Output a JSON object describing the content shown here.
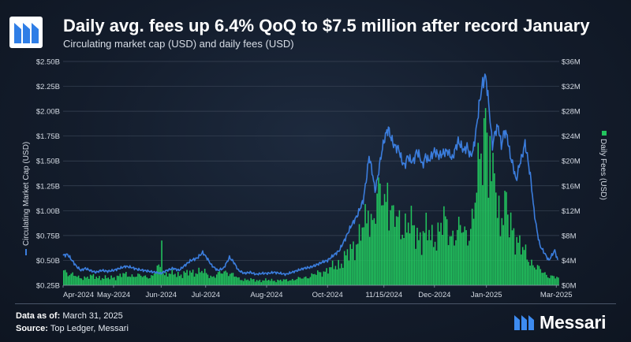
{
  "header": {
    "title": "Daily avg. fees up 6.4% QoQ to $7.5 million after record January",
    "subtitle": "Circulating market cap (USD) and daily fees (USD)"
  },
  "footer": {
    "data_as_of_label": "Data as of:",
    "data_as_of_value": "March 31, 2025",
    "source_label": "Source:",
    "source_value": "Top Ledger, Messari",
    "brand_name": "Messari"
  },
  "colors": {
    "line": "#3b7ddd",
    "bars": "#22c55e",
    "grid": "#3a4556",
    "brand": "#3d8bf0"
  },
  "chart_data": {
    "type": "bar+line",
    "title": "Daily avg. fees up 6.4% QoQ to $7.5 million after record January",
    "subtitle": "Circulating market cap (USD) and daily fees (USD)",
    "x_tick_labels": [
      "Apr-2024",
      "May-2024",
      "Jun-2024",
      "Jul-2024",
      "Aug-2024",
      "Oct-2024",
      "11/15/2024",
      "Dec-2024",
      "Jan-2025",
      "Mar-2025"
    ],
    "x_tick_days": [
      0,
      34,
      66,
      96,
      137,
      178,
      216,
      250,
      285,
      332
    ],
    "total_days": 334,
    "left_axis": {
      "label": "Circulating Market Cap (USD)",
      "range": [
        0.25,
        2.5
      ],
      "ticks": [
        "$0.25B",
        "$0.50B",
        "$0.75B",
        "$1.00B",
        "$1.25B",
        "$1.50B",
        "$1.75B",
        "$2.00B",
        "$2.25B",
        "$2.50B"
      ]
    },
    "right_axis": {
      "label": "Daily Fees (USD)",
      "range": [
        0,
        36
      ],
      "ticks": [
        "$0M",
        "$4M",
        "$8M",
        "$12M",
        "$16M",
        "$20M",
        "$24M",
        "$28M",
        "$32M",
        "$36M"
      ]
    },
    "legend": "axis-title swatches (left: line, right: bars)",
    "grid": true,
    "series": [
      {
        "name": "Circulating Market Cap (USD)",
        "type": "line",
        "axis": "left",
        "unit": "USD billions",
        "points": [
          [
            0,
            0.55
          ],
          [
            3,
            0.56
          ],
          [
            6,
            0.5
          ],
          [
            9,
            0.44
          ],
          [
            12,
            0.4
          ],
          [
            15,
            0.42
          ],
          [
            18,
            0.4
          ],
          [
            22,
            0.38
          ],
          [
            26,
            0.4
          ],
          [
            30,
            0.39
          ],
          [
            34,
            0.4
          ],
          [
            38,
            0.42
          ],
          [
            42,
            0.44
          ],
          [
            46,
            0.43
          ],
          [
            50,
            0.41
          ],
          [
            54,
            0.4
          ],
          [
            58,
            0.39
          ],
          [
            62,
            0.38
          ],
          [
            66,
            0.37
          ],
          [
            70,
            0.4
          ],
          [
            74,
            0.42
          ],
          [
            78,
            0.4
          ],
          [
            82,
            0.45
          ],
          [
            86,
            0.5
          ],
          [
            90,
            0.52
          ],
          [
            94,
            0.58
          ],
          [
            97,
            0.52
          ],
          [
            100,
            0.45
          ],
          [
            104,
            0.4
          ],
          [
            108,
            0.42
          ],
          [
            112,
            0.53
          ],
          [
            115,
            0.48
          ],
          [
            118,
            0.4
          ],
          [
            122,
            0.37
          ],
          [
            126,
            0.38
          ],
          [
            130,
            0.36
          ],
          [
            134,
            0.37
          ],
          [
            138,
            0.37
          ],
          [
            142,
            0.38
          ],
          [
            146,
            0.37
          ],
          [
            150,
            0.36
          ],
          [
            154,
            0.38
          ],
          [
            158,
            0.4
          ],
          [
            162,
            0.42
          ],
          [
            166,
            0.43
          ],
          [
            170,
            0.45
          ],
          [
            174,
            0.48
          ],
          [
            178,
            0.5
          ],
          [
            182,
            0.55
          ],
          [
            186,
            0.6
          ],
          [
            190,
            0.72
          ],
          [
            194,
            0.85
          ],
          [
            198,
            0.95
          ],
          [
            202,
            1.1
          ],
          [
            204,
            1.3
          ],
          [
            206,
            1.55
          ],
          [
            208,
            1.4
          ],
          [
            210,
            1.2
          ],
          [
            212,
            1.35
          ],
          [
            214,
            1.55
          ],
          [
            216,
            1.7
          ],
          [
            218,
            1.8
          ],
          [
            219,
            1.82
          ],
          [
            221,
            1.72
          ],
          [
            223,
            1.65
          ],
          [
            226,
            1.62
          ],
          [
            228,
            1.5
          ],
          [
            230,
            1.45
          ],
          [
            232,
            1.55
          ],
          [
            234,
            1.5
          ],
          [
            236,
            1.5
          ],
          [
            238,
            1.6
          ],
          [
            240,
            1.55
          ],
          [
            242,
            1.45
          ],
          [
            244,
            1.55
          ],
          [
            246,
            1.5
          ],
          [
            248,
            1.55
          ],
          [
            250,
            1.6
          ],
          [
            253,
            1.55
          ],
          [
            256,
            1.58
          ],
          [
            259,
            1.6
          ],
          [
            262,
            1.52
          ],
          [
            264,
            1.62
          ],
          [
            266,
            1.7
          ],
          [
            268,
            1.65
          ],
          [
            270,
            1.6
          ],
          [
            272,
            1.65
          ],
          [
            274,
            1.55
          ],
          [
            276,
            1.6
          ],
          [
            278,
            1.8
          ],
          [
            280,
            2.05
          ],
          [
            282,
            2.25
          ],
          [
            284,
            2.35
          ],
          [
            285,
            2.3
          ],
          [
            287,
            2.0
          ],
          [
            289,
            1.65
          ],
          [
            291,
            1.8
          ],
          [
            293,
            1.85
          ],
          [
            295,
            1.65
          ],
          [
            297,
            1.8
          ],
          [
            299,
            1.75
          ],
          [
            301,
            1.55
          ],
          [
            303,
            1.45
          ],
          [
            305,
            1.3
          ],
          [
            307,
            1.45
          ],
          [
            309,
            1.55
          ],
          [
            311,
            1.68
          ],
          [
            313,
            1.5
          ],
          [
            315,
            1.3
          ],
          [
            317,
            1.0
          ],
          [
            319,
            0.8
          ],
          [
            321,
            0.65
          ],
          [
            323,
            0.6
          ],
          [
            325,
            0.55
          ],
          [
            327,
            0.5
          ],
          [
            329,
            0.55
          ],
          [
            331,
            0.6
          ],
          [
            333,
            0.5
          ]
        ]
      },
      {
        "name": "Daily Fees (USD)",
        "type": "bar",
        "axis": "right",
        "unit": "USD millions",
        "knots": [
          [
            0,
            2.4
          ],
          [
            10,
            1.2
          ],
          [
            20,
            1.4
          ],
          [
            30,
            1.1
          ],
          [
            40,
            1.7
          ],
          [
            50,
            1.5
          ],
          [
            60,
            1.4
          ],
          [
            64,
            3.0
          ],
          [
            68,
            1.8
          ],
          [
            80,
            1.8
          ],
          [
            92,
            2.3
          ],
          [
            100,
            1.4
          ],
          [
            110,
            2.3
          ],
          [
            118,
            1.0
          ],
          [
            130,
            0.8
          ],
          [
            140,
            0.8
          ],
          [
            150,
            0.8
          ],
          [
            160,
            1.1
          ],
          [
            170,
            1.8
          ],
          [
            180,
            2.7
          ],
          [
            186,
            3.5
          ],
          [
            192,
            5.0
          ],
          [
            198,
            7.5
          ],
          [
            204,
            10.0
          ],
          [
            208,
            11.0
          ],
          [
            212,
            14.0
          ],
          [
            216,
            13.5
          ],
          [
            219,
            12.5
          ],
          [
            224,
            10.0
          ],
          [
            228,
            9.5
          ],
          [
            232,
            10.0
          ],
          [
            236,
            8.5
          ],
          [
            240,
            8.0
          ],
          [
            244,
            8.5
          ],
          [
            248,
            7.5
          ],
          [
            252,
            8.5
          ],
          [
            256,
            10.0
          ],
          [
            260,
            8.5
          ],
          [
            264,
            8.0
          ],
          [
            268,
            9.0
          ],
          [
            272,
            8.5
          ],
          [
            276,
            10.5
          ],
          [
            280,
            20.0
          ],
          [
            282,
            25.0
          ],
          [
            284,
            26.0
          ],
          [
            286,
            19.0
          ],
          [
            288,
            15.0
          ],
          [
            290,
            16.5
          ],
          [
            292,
            13.0
          ],
          [
            294,
            11.0
          ],
          [
            296,
            12.5
          ],
          [
            298,
            10.0
          ],
          [
            300,
            9.5
          ],
          [
            304,
            8.5
          ],
          [
            308,
            6.0
          ],
          [
            312,
            4.5
          ],
          [
            316,
            3.5
          ],
          [
            320,
            2.5
          ],
          [
            326,
            1.6
          ],
          [
            333,
            1.1
          ]
        ],
        "spikes": [
          [
            66,
            7.2
          ],
          [
            218,
            16.5
          ],
          [
            284,
            28.5
          ],
          [
            287,
            24.0
          ],
          [
            290,
            18.0
          ],
          [
            298,
            15.0
          ],
          [
            205,
            12.0
          ],
          [
            225,
            11.0
          ]
        ]
      }
    ]
  }
}
